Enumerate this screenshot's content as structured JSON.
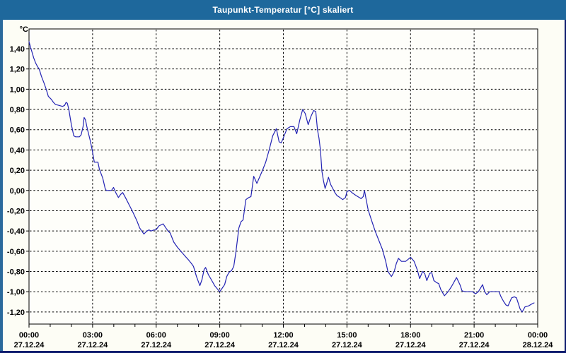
{
  "window": {
    "title": "Taupunkt-Temperatur [°C] skaliert"
  },
  "colors": {
    "titlebar_bg": "#1E689C",
    "left_border": "#2B6A9C",
    "navy_border": "#0D1C6E",
    "page_bg": "#FDFDF5",
    "plot_bg": "#FEFEFA",
    "grid": "#000000",
    "axis_text": "#000000",
    "line": "#2424B4"
  },
  "chart_data": {
    "type": "line",
    "title": "Taupunkt-Temperatur [°C] skaliert",
    "unit_label": "°C",
    "grid": "dashed",
    "legend": "none",
    "x_axis": {
      "range_hours": [
        0,
        24
      ],
      "minor_tick_every_hours": 1,
      "major_tick_every_hours": 3,
      "ticks": [
        {
          "hour": 0,
          "time": "00:00",
          "date": "27.12.24"
        },
        {
          "hour": 3,
          "time": "03:00",
          "date": "27.12.24"
        },
        {
          "hour": 6,
          "time": "06:00",
          "date": "27.12.24"
        },
        {
          "hour": 9,
          "time": "09:00",
          "date": "27.12.24"
        },
        {
          "hour": 12,
          "time": "12:00",
          "date": "27.12.24"
        },
        {
          "hour": 15,
          "time": "15:00",
          "date": "27.12.24"
        },
        {
          "hour": 18,
          "time": "18:00",
          "date": "27.12.24"
        },
        {
          "hour": 21,
          "time": "21:00",
          "date": "27.12.24"
        },
        {
          "hour": 24,
          "time": "00:00",
          "date": "28.12.24"
        }
      ]
    },
    "y_axis": {
      "range": [
        -1.32,
        1.6
      ],
      "ticks": [
        {
          "label": "1,40",
          "value": 1.4
        },
        {
          "label": "1,20",
          "value": 1.2
        },
        {
          "label": "1,00",
          "value": 1.0
        },
        {
          "label": "0,80",
          "value": 0.8
        },
        {
          "label": "0,60",
          "value": 0.6
        },
        {
          "label": "0,40",
          "value": 0.4
        },
        {
          "label": "0,20",
          "value": 0.2
        },
        {
          "label": "0,00",
          "value": 0.0
        },
        {
          "label": "-0,20",
          "value": -0.2
        },
        {
          "label": "-0,40",
          "value": -0.4
        },
        {
          "label": "-0,60",
          "value": -0.6
        },
        {
          "label": "-0,80",
          "value": -0.8
        },
        {
          "label": "-1,00",
          "value": -1.0
        },
        {
          "label": "-1,20",
          "value": -1.2
        }
      ]
    },
    "series": [
      {
        "name": "Taupunkt-Temperatur skaliert",
        "color": "#2424B4",
        "points": [
          [
            0.0,
            1.47
          ],
          [
            0.08,
            1.41
          ],
          [
            0.15,
            1.36
          ],
          [
            0.22,
            1.31
          ],
          [
            0.31,
            1.26
          ],
          [
            0.41,
            1.22
          ],
          [
            0.48,
            1.2
          ],
          [
            0.58,
            1.13
          ],
          [
            0.71,
            1.06
          ],
          [
            0.81,
            1.0
          ],
          [
            0.91,
            0.93
          ],
          [
            1.05,
            0.9
          ],
          [
            1.15,
            0.87
          ],
          [
            1.25,
            0.85
          ],
          [
            1.42,
            0.84
          ],
          [
            1.58,
            0.83
          ],
          [
            1.68,
            0.84
          ],
          [
            1.75,
            0.87
          ],
          [
            1.81,
            0.86
          ],
          [
            1.88,
            0.8
          ],
          [
            1.95,
            0.71
          ],
          [
            2.0,
            0.65
          ],
          [
            2.05,
            0.6
          ],
          [
            2.11,
            0.54
          ],
          [
            2.2,
            0.53
          ],
          [
            2.38,
            0.53
          ],
          [
            2.46,
            0.55
          ],
          [
            2.55,
            0.63
          ],
          [
            2.6,
            0.72
          ],
          [
            2.66,
            0.7
          ],
          [
            2.75,
            0.61
          ],
          [
            2.88,
            0.5
          ],
          [
            2.98,
            0.4
          ],
          [
            3.08,
            0.28
          ],
          [
            3.25,
            0.28
          ],
          [
            3.32,
            0.21
          ],
          [
            3.48,
            0.12
          ],
          [
            3.59,
            0.02
          ],
          [
            3.65,
            0.0
          ],
          [
            3.89,
            0.0
          ],
          [
            3.99,
            0.03
          ],
          [
            4.09,
            -0.02
          ],
          [
            4.22,
            -0.07
          ],
          [
            4.32,
            -0.04
          ],
          [
            4.42,
            -0.02
          ],
          [
            4.55,
            -0.07
          ],
          [
            4.72,
            -0.14
          ],
          [
            4.89,
            -0.21
          ],
          [
            5.09,
            -0.3
          ],
          [
            5.22,
            -0.37
          ],
          [
            5.32,
            -0.4
          ],
          [
            5.42,
            -0.43
          ],
          [
            5.56,
            -0.4
          ],
          [
            5.66,
            -0.39
          ],
          [
            5.76,
            -0.4
          ],
          [
            5.89,
            -0.39
          ],
          [
            5.99,
            -0.39
          ],
          [
            6.13,
            -0.35
          ],
          [
            6.33,
            -0.33
          ],
          [
            6.46,
            -0.37
          ],
          [
            6.56,
            -0.4
          ],
          [
            6.66,
            -0.42
          ],
          [
            6.83,
            -0.51
          ],
          [
            7.0,
            -0.56
          ],
          [
            7.16,
            -0.6
          ],
          [
            7.33,
            -0.64
          ],
          [
            7.5,
            -0.68
          ],
          [
            7.66,
            -0.72
          ],
          [
            7.76,
            -0.75
          ],
          [
            7.9,
            -0.85
          ],
          [
            8.06,
            -0.94
          ],
          [
            8.16,
            -0.88
          ],
          [
            8.26,
            -0.78
          ],
          [
            8.33,
            -0.76
          ],
          [
            8.46,
            -0.83
          ],
          [
            8.6,
            -0.88
          ],
          [
            8.76,
            -0.94
          ],
          [
            9.0,
            -1.0
          ],
          [
            9.13,
            -0.96
          ],
          [
            9.23,
            -0.93
          ],
          [
            9.33,
            -0.85
          ],
          [
            9.43,
            -0.81
          ],
          [
            9.56,
            -0.79
          ],
          [
            9.66,
            -0.75
          ],
          [
            9.76,
            -0.61
          ],
          [
            9.9,
            -0.37
          ],
          [
            10.0,
            -0.31
          ],
          [
            10.1,
            -0.29
          ],
          [
            10.23,
            -0.09
          ],
          [
            10.37,
            -0.07
          ],
          [
            10.47,
            -0.06
          ],
          [
            10.6,
            0.14
          ],
          [
            10.75,
            0.07
          ],
          [
            11.0,
            0.19
          ],
          [
            11.17,
            0.28
          ],
          [
            11.33,
            0.4
          ],
          [
            11.5,
            0.54
          ],
          [
            11.67,
            0.61
          ],
          [
            11.8,
            0.48
          ],
          [
            11.9,
            0.47
          ],
          [
            12.0,
            0.52
          ],
          [
            12.17,
            0.61
          ],
          [
            12.33,
            0.63
          ],
          [
            12.5,
            0.63
          ],
          [
            12.63,
            0.56
          ],
          [
            12.78,
            0.7
          ],
          [
            12.91,
            0.8
          ],
          [
            13.03,
            0.76
          ],
          [
            13.17,
            0.65
          ],
          [
            13.3,
            0.73
          ],
          [
            13.43,
            0.79
          ],
          [
            13.53,
            0.78
          ],
          [
            13.61,
            0.6
          ],
          [
            13.68,
            0.52
          ],
          [
            13.75,
            0.4
          ],
          [
            13.82,
            0.19
          ],
          [
            13.89,
            0.1
          ],
          [
            13.97,
            0.02
          ],
          [
            14.03,
            0.06
          ],
          [
            14.13,
            0.13
          ],
          [
            14.23,
            0.06
          ],
          [
            14.33,
            0.02
          ],
          [
            14.43,
            -0.02
          ],
          [
            14.53,
            -0.05
          ],
          [
            14.67,
            -0.07
          ],
          [
            14.8,
            -0.09
          ],
          [
            14.93,
            -0.07
          ],
          [
            15.0,
            -0.01
          ],
          [
            15.13,
            0.0
          ],
          [
            15.23,
            -0.02
          ],
          [
            15.43,
            -0.05
          ],
          [
            15.67,
            -0.08
          ],
          [
            15.77,
            -0.06
          ],
          [
            15.83,
            0.0
          ],
          [
            15.9,
            -0.08
          ],
          [
            16.0,
            -0.19
          ],
          [
            16.17,
            -0.3
          ],
          [
            16.33,
            -0.4
          ],
          [
            16.5,
            -0.49
          ],
          [
            16.67,
            -0.58
          ],
          [
            16.83,
            -0.7
          ],
          [
            16.93,
            -0.8
          ],
          [
            17.1,
            -0.85
          ],
          [
            17.23,
            -0.8
          ],
          [
            17.33,
            -0.72
          ],
          [
            17.43,
            -0.67
          ],
          [
            17.57,
            -0.7
          ],
          [
            17.77,
            -0.7
          ],
          [
            18.0,
            -0.66
          ],
          [
            18.17,
            -0.7
          ],
          [
            18.33,
            -0.79
          ],
          [
            18.43,
            -0.87
          ],
          [
            18.57,
            -0.8
          ],
          [
            18.67,
            -0.82
          ],
          [
            18.77,
            -0.89
          ],
          [
            18.9,
            -0.82
          ],
          [
            19.0,
            -0.81
          ],
          [
            19.1,
            -0.89
          ],
          [
            19.23,
            -0.91
          ],
          [
            19.33,
            -0.92
          ],
          [
            19.43,
            -0.98
          ],
          [
            19.6,
            -1.04
          ],
          [
            19.77,
            -1.0
          ],
          [
            19.93,
            -0.95
          ],
          [
            20.17,
            -0.86
          ],
          [
            20.33,
            -0.93
          ],
          [
            20.43,
            -0.99
          ],
          [
            20.57,
            -1.0
          ],
          [
            20.93,
            -1.0
          ],
          [
            21.07,
            -1.02
          ],
          [
            21.2,
            -1.0
          ],
          [
            21.4,
            -0.93
          ],
          [
            21.5,
            -1.0
          ],
          [
            21.6,
            -1.03
          ],
          [
            21.73,
            -1.0
          ],
          [
            22.17,
            -1.0
          ],
          [
            22.27,
            -1.05
          ],
          [
            22.4,
            -1.1
          ],
          [
            22.5,
            -1.13
          ],
          [
            22.6,
            -1.14
          ],
          [
            22.77,
            -1.06
          ],
          [
            22.9,
            -1.05
          ],
          [
            23.0,
            -1.06
          ],
          [
            23.17,
            -1.17
          ],
          [
            23.27,
            -1.2
          ],
          [
            23.4,
            -1.15
          ],
          [
            23.57,
            -1.14
          ],
          [
            23.73,
            -1.12
          ],
          [
            23.83,
            -1.11
          ]
        ]
      }
    ]
  }
}
